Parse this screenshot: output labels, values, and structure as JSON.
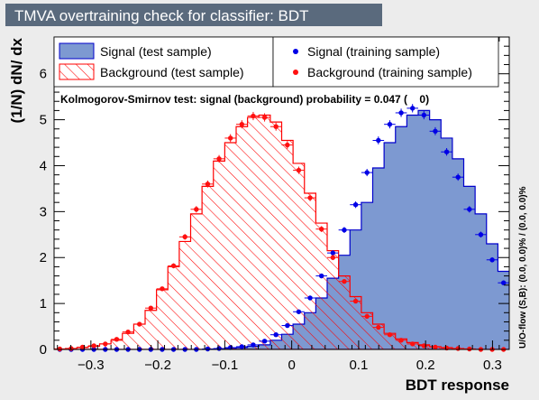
{
  "chart_data": {
    "type": "histogram",
    "title": "TMVA overtraining check for classifier: BDT",
    "xlabel": "BDT response",
    "ylabel": "(1/N) dN/ dx",
    "side_label": "U/O-flow (S,B): (0.0, 0.0)% / (0.0, 0.0)%",
    "ks_text": "Kolmogorov-Smirnov test: signal (background) probability = 0.047 (    0)",
    "xlim": [
      -0.355,
      0.325
    ],
    "ylim": [
      0,
      6.8
    ],
    "x_ticks": [
      -0.3,
      -0.2,
      -0.1,
      0,
      0.1,
      0.2,
      0.3
    ],
    "x_tick_labels": [
      "−0.3",
      "−0.2",
      "−0.1",
      "0",
      "0.1",
      "0.2",
      "0.3"
    ],
    "y_ticks": [
      0,
      1,
      2,
      3,
      4,
      5,
      6
    ],
    "y_tick_labels": [
      "0",
      "1",
      "2",
      "3",
      "4",
      "5",
      "6"
    ],
    "bin_edges_start": -0.355,
    "bin_width": 0.017,
    "legend": {
      "signal_test": "Signal (test sample)",
      "signal_train": "Signal (training sample)",
      "background_test": "Background (test sample)",
      "background_train": "Background (training sample)"
    },
    "series": [
      {
        "name": "Signal (test sample)",
        "style": "filled-histogram",
        "color": "#7d99d1",
        "values": [
          0,
          0,
          0,
          0,
          0,
          0,
          0,
          0,
          0,
          0,
          0,
          0,
          0,
          0,
          0.01,
          0.02,
          0.04,
          0.07,
          0.1,
          0.2,
          0.33,
          0.55,
          0.8,
          1.12,
          1.55,
          2.05,
          2.6,
          3.2,
          3.95,
          4.5,
          4.85,
          5.1,
          5.2,
          5.0,
          4.6,
          4.15,
          3.55,
          2.95,
          2.3,
          1.7,
          1.2,
          0.8,
          0.5,
          0.3,
          0.16,
          0.08,
          0.04,
          0.02,
          0.01,
          0,
          0
        ]
      },
      {
        "name": "Background (test sample)",
        "style": "hatched-histogram",
        "color": "#ff0000",
        "values": [
          0.01,
          0.02,
          0.04,
          0.07,
          0.12,
          0.2,
          0.35,
          0.55,
          0.85,
          1.3,
          1.8,
          2.35,
          2.95,
          3.55,
          4.1,
          4.5,
          4.85,
          5.05,
          5.1,
          4.95,
          4.55,
          4.05,
          3.4,
          2.75,
          2.15,
          1.6,
          1.15,
          0.8,
          0.55,
          0.35,
          0.23,
          0.15,
          0.1,
          0.06,
          0.04,
          0.02,
          0.01,
          0,
          0,
          0,
          0,
          0,
          0,
          0,
          0,
          0,
          0,
          0,
          0,
          0,
          0
        ]
      },
      {
        "name": "Signal (training sample)",
        "style": "points",
        "color": "#0000e6",
        "values": [
          0,
          0,
          0,
          0,
          0,
          0,
          0,
          0,
          0,
          0,
          0,
          0,
          0,
          0.01,
          0.02,
          0.04,
          0.06,
          0.1,
          0.18,
          0.32,
          0.52,
          0.82,
          1.12,
          1.6,
          2.1,
          2.6,
          3.15,
          3.85,
          4.55,
          4.9,
          5.15,
          5.25,
          5.1,
          4.75,
          4.3,
          3.75,
          3.05,
          2.5,
          1.95,
          1.45,
          1.05,
          0.7,
          0.45,
          0.3,
          0.18,
          0.1,
          0.05,
          0.03,
          0.01,
          0,
          0
        ]
      },
      {
        "name": "Background (training sample)",
        "style": "points",
        "color": "#ff1010",
        "values": [
          0.01,
          0.02,
          0.05,
          0.08,
          0.12,
          0.22,
          0.38,
          0.55,
          0.9,
          1.32,
          1.82,
          2.45,
          3.05,
          3.6,
          4.15,
          4.6,
          4.9,
          5.08,
          5.05,
          4.85,
          4.45,
          3.9,
          3.3,
          2.62,
          2.0,
          1.48,
          1.05,
          0.72,
          0.48,
          0.32,
          0.2,
          0.12,
          0.08,
          0.05,
          0.03,
          0.02,
          0.01,
          0,
          0,
          0,
          0,
          0,
          0,
          0,
          0,
          0,
          0,
          0,
          0,
          0,
          0
        ]
      }
    ]
  }
}
